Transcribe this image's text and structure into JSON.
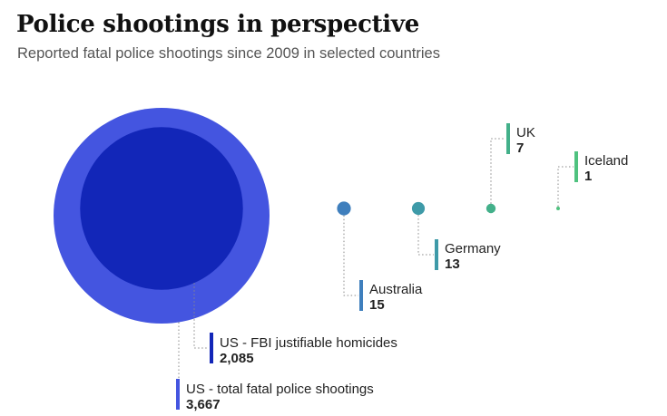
{
  "header": {
    "title": "Police shootings in perspective",
    "subtitle": "Reported fatal police shootings since 2009 in selected countries"
  },
  "chart_data": {
    "type": "bubble",
    "title": "Police shootings in perspective",
    "subtitle": "Reported fatal police shootings since 2009 in selected countries",
    "series": [
      {
        "name": "US - total fatal police shootings",
        "value": 3667,
        "value_label": "3,667",
        "color": "#4455e0"
      },
      {
        "name": "US - FBI justifiable homicides",
        "value": 2085,
        "value_label": "2,085",
        "color": "#1226b8"
      },
      {
        "name": "Australia",
        "value": 15,
        "value_label": "15",
        "color": "#3f7fbd"
      },
      {
        "name": "Germany",
        "value": 13,
        "value_label": "13",
        "color": "#3e9aa8"
      },
      {
        "name": "UK",
        "value": 7,
        "value_label": "7",
        "color": "#43b08a"
      },
      {
        "name": "Iceland",
        "value": 1,
        "value_label": "1",
        "color": "#4fc27f"
      }
    ]
  }
}
